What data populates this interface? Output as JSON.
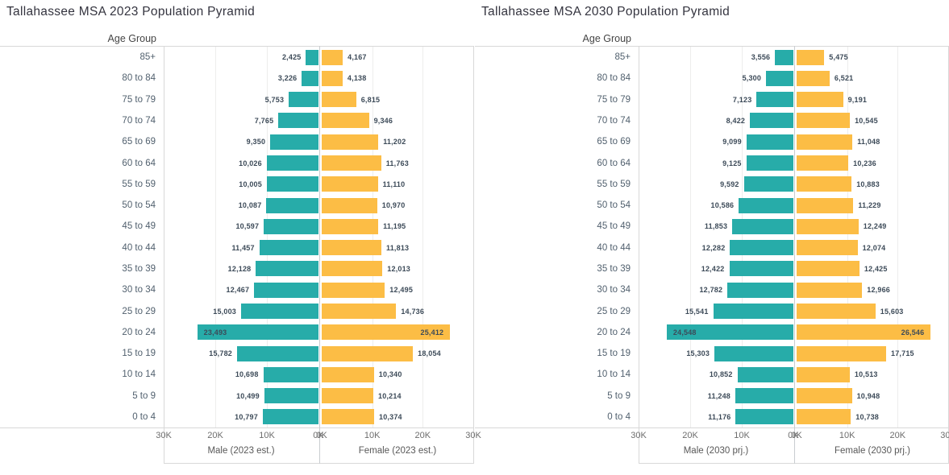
{
  "chart_data": [
    {
      "type": "bar",
      "subtype": "population-pyramid",
      "title": "Tallahassee MSA 2023 Population Pyramid",
      "ylabel": "Age Group",
      "xlabel_left": "Male (2023 est.)",
      "xlabel_right": "Female (2023 est.)",
      "xlim": [
        0,
        30000
      ],
      "ticks_left": [
        "30K",
        "20K",
        "10K",
        "0K"
      ],
      "ticks_right": [
        "0K",
        "10K",
        "20K",
        "30K"
      ],
      "grid": true,
      "categories": [
        "85+",
        "80 to 84",
        "75 to 79",
        "70 to 74",
        "65 to 69",
        "60 to 64",
        "55 to 59",
        "50 to 54",
        "45 to 49",
        "40 to 44",
        "35 to 39",
        "30 to 34",
        "25 to 29",
        "20 to 24",
        "15 to 19",
        "10 to 14",
        "5 to 9",
        "0 to 4"
      ],
      "series": [
        {
          "name": "Male (2023 est.)",
          "color": "#27ACA9",
          "values": [
            2425,
            3226,
            5753,
            7765,
            9350,
            10026,
            10005,
            10087,
            10597,
            11457,
            12128,
            12467,
            15003,
            23493,
            15782,
            10698,
            10499,
            10797
          ]
        },
        {
          "name": "Female (2023 est.)",
          "color": "#FCBD45",
          "values": [
            4167,
            4138,
            6815,
            9346,
            11202,
            11763,
            11110,
            10970,
            11195,
            11813,
            12013,
            12495,
            14736,
            25412,
            18054,
            10340,
            10214,
            10374
          ]
        }
      ]
    },
    {
      "type": "bar",
      "subtype": "population-pyramid",
      "title": "Tallahassee MSA 2030 Population Pyramid",
      "ylabel": "Age Group",
      "xlabel_left": "Male (2030 prj.)",
      "xlabel_right": "Female (2030 prj.)",
      "xlim": [
        0,
        30000
      ],
      "ticks_left": [
        "30K",
        "20K",
        "10K",
        "0K"
      ],
      "ticks_right": [
        "0K",
        "10K",
        "20K",
        "30K"
      ],
      "grid": true,
      "categories": [
        "85+",
        "80 to 84",
        "75 to 79",
        "70 to 74",
        "65 to 69",
        "60 to 64",
        "55 to 59",
        "50 to 54",
        "45 to 49",
        "40 to 44",
        "35 to 39",
        "30 to 34",
        "25 to 29",
        "20 to 24",
        "15 to 19",
        "10 to 14",
        "5 to 9",
        "0 to 4"
      ],
      "series": [
        {
          "name": "Male (2030 prj.)",
          "color": "#27ACA9",
          "values": [
            3556,
            5300,
            7123,
            8422,
            9099,
            9125,
            9592,
            10586,
            11853,
            12282,
            12422,
            12782,
            15541,
            24548,
            15303,
            10852,
            11248,
            11176
          ]
        },
        {
          "name": "Female (2030 prj.)",
          "color": "#FCBD45",
          "values": [
            5475,
            6521,
            9191,
            10545,
            11048,
            10236,
            10883,
            11229,
            12249,
            12074,
            12425,
            12966,
            15603,
            26546,
            17715,
            10513,
            10948,
            10738
          ]
        }
      ]
    }
  ]
}
